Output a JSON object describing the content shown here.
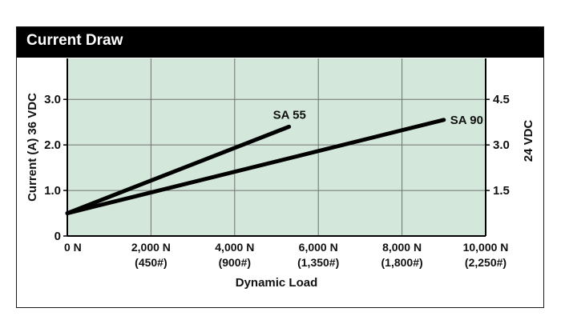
{
  "header": {
    "title": "Current Draw"
  },
  "chart_data": {
    "type": "line",
    "title": "Current Draw",
    "xlabel": "Dynamic Load",
    "ylabel": "Current (A) 36 VDC",
    "y2label": "24 VDC",
    "xlim": [
      0,
      10000
    ],
    "ylim": [
      0,
      3.9
    ],
    "x_ticks": [
      {
        "value": 0,
        "label": "0 N",
        "sub": ""
      },
      {
        "value": 2000,
        "label": "2,000 N",
        "sub": "(450#)"
      },
      {
        "value": 4000,
        "label": "4,000 N",
        "sub": "(900#)"
      },
      {
        "value": 6000,
        "label": "6,000 N",
        "sub": "(1,350#)"
      },
      {
        "value": 8000,
        "label": "8,000 N",
        "sub": "(1,800#)"
      },
      {
        "value": 10000,
        "label": "10,000 N",
        "sub": "(2,250#)"
      }
    ],
    "y_ticks": [
      {
        "value": 0,
        "label": "0"
      },
      {
        "value": 1.0,
        "label": "1.0"
      },
      {
        "value": 2.0,
        "label": "2.0"
      },
      {
        "value": 3.0,
        "label": "3.0"
      }
    ],
    "y2_ticks": [
      {
        "value": 1.0,
        "label": "1.5"
      },
      {
        "value": 2.0,
        "label": "3.0"
      },
      {
        "value": 3.0,
        "label": "4.5"
      }
    ],
    "grid": true,
    "plot_bg": "#d3e8da",
    "line_color": "#000000",
    "series": [
      {
        "name": "SA 55",
        "x": [
          0,
          5300
        ],
        "y": [
          0.5,
          2.4
        ]
      },
      {
        "name": "SA 90",
        "x": [
          0,
          9000
        ],
        "y": [
          0.5,
          2.55
        ]
      }
    ]
  }
}
